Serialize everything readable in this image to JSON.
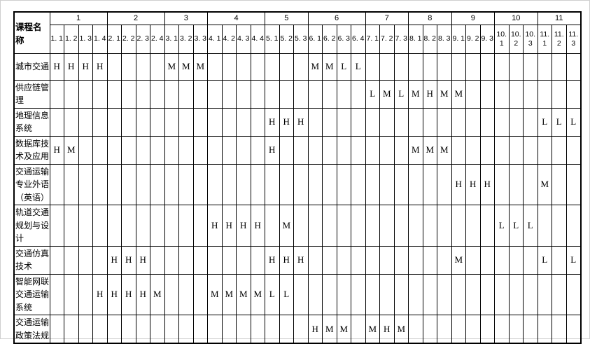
{
  "page": {
    "background": "#ffffff",
    "text_color": "#000000",
    "border_color": "#000000"
  },
  "table": {
    "corner_label": "课程名称",
    "value_scale": [
      "H",
      "M",
      "L"
    ],
    "groups": [
      {
        "label": "1",
        "subcols": [
          "1. 1",
          "1. 2",
          "1. 3",
          "1. 4"
        ]
      },
      {
        "label": "2",
        "subcols": [
          "2. 1",
          "2. 2",
          "2. 3",
          "2. 4"
        ]
      },
      {
        "label": "3",
        "subcols": [
          "3. 1",
          "3. 2",
          "3. 3"
        ]
      },
      {
        "label": "4",
        "subcols": [
          "4. 1",
          "4. 2",
          "4. 3",
          "4. 4"
        ]
      },
      {
        "label": "5",
        "subcols": [
          "5. 1",
          "5. 2",
          "5. 3"
        ]
      },
      {
        "label": "6",
        "subcols": [
          "6. 1",
          "6. 2",
          "6. 3",
          "6. 4"
        ]
      },
      {
        "label": "7",
        "subcols": [
          "7. 1",
          "7. 2",
          "7. 3"
        ]
      },
      {
        "label": "8",
        "subcols": [
          "8. 1",
          "8. 2",
          "8. 3"
        ]
      },
      {
        "label": "9",
        "subcols": [
          "9. 1",
          "9. 2",
          "9. 3"
        ]
      },
      {
        "label": "10",
        "subcols": [
          "10. 1",
          "10. 2",
          "10. 3"
        ]
      },
      {
        "label": "11",
        "subcols": [
          "11. 1",
          "11. 2",
          "11. 3"
        ]
      }
    ],
    "rows": [
      {
        "course": "城市交通",
        "cells": [
          "H",
          "H",
          "H",
          "H",
          "",
          "",
          "",
          "",
          "M",
          "M",
          "M",
          "",
          "",
          "",
          "",
          "",
          "",
          "",
          "M",
          "M",
          "L",
          "L",
          "",
          "",
          "",
          "",
          "",
          "",
          "",
          "",
          "",
          "",
          "",
          "",
          "",
          "",
          ""
        ]
      },
      {
        "course": "供应链管理",
        "cells": [
          "",
          "",
          "",
          "",
          "",
          "",
          "",
          "",
          "",
          "",
          "",
          "",
          "",
          "",
          "",
          "",
          "",
          "",
          "",
          "",
          "",
          "",
          "L",
          "M",
          "L",
          "M",
          "H",
          "M",
          "M",
          "",
          "",
          "",
          "",
          "",
          "",
          "",
          ""
        ]
      },
      {
        "course": "地理信息系统",
        "cells": [
          "",
          "",
          "",
          "",
          "",
          "",
          "",
          "",
          "",
          "",
          "",
          "",
          "",
          "",
          "",
          "H",
          "H",
          "H",
          "",
          "",
          "",
          "",
          "",
          "",
          "",
          "",
          "",
          "",
          "",
          "",
          "",
          "",
          "",
          "",
          "L",
          "L",
          "L"
        ]
      },
      {
        "course": "数据库技术及应用",
        "cells": [
          "H",
          "M",
          "",
          "",
          "",
          "",
          "",
          "",
          "",
          "",
          "",
          "",
          "",
          "",
          "",
          "H",
          "",
          "",
          "",
          "",
          "",
          "",
          "",
          "",
          "",
          "M",
          "M",
          "M",
          "",
          "",
          "",
          "",
          "",
          "",
          "",
          "",
          ""
        ]
      },
      {
        "course": "交通运输专业外语（英语）",
        "cells": [
          "",
          "",
          "",
          "",
          "",
          "",
          "",
          "",
          "",
          "",
          "",
          "",
          "",
          "",
          "",
          "",
          "",
          "",
          "",
          "",
          "",
          "",
          "",
          "",
          "",
          "",
          "",
          "",
          "H",
          "H",
          "H",
          "",
          "",
          "",
          "M",
          "",
          ""
        ]
      },
      {
        "course": "轨道交通规划与设计",
        "cells": [
          "",
          "",
          "",
          "",
          "",
          "",
          "",
          "",
          "",
          "",
          "",
          "H",
          "H",
          "H",
          "H",
          "",
          "M",
          "",
          "",
          "",
          "",
          "",
          "",
          "",
          "",
          "",
          "",
          "",
          "",
          "",
          "",
          "L",
          "L",
          "L",
          "",
          "",
          ""
        ]
      },
      {
        "course": "交通仿真技术",
        "cells": [
          "",
          "",
          "",
          "",
          "H",
          "H",
          "H",
          "",
          "",
          "",
          "",
          "",
          "",
          "",
          "",
          "H",
          "H",
          "H",
          "",
          "",
          "",
          "",
          "",
          "",
          "",
          "",
          "",
          "",
          "M",
          "",
          "",
          "",
          "",
          "",
          "L",
          "",
          "L"
        ]
      },
      {
        "course": "智能网联交通运输系统",
        "cells": [
          "",
          "",
          "",
          "H",
          "H",
          "H",
          "H",
          "M",
          "",
          "",
          "",
          "M",
          "M",
          "M",
          "M",
          "L",
          "L",
          "",
          "",
          "",
          "",
          "",
          "",
          "",
          "",
          "",
          "",
          "",
          "",
          "",
          "",
          "",
          "",
          "",
          "",
          "",
          ""
        ]
      },
      {
        "course": "交通运输政策法规",
        "cells": [
          "",
          "",
          "",
          "",
          "",
          "",
          "",
          "",
          "",
          "",
          "",
          "",
          "",
          "",
          "",
          "",
          "",
          "",
          "H",
          "M",
          "M",
          "",
          "M",
          "H",
          "M",
          "",
          "",
          "",
          "",
          "",
          "",
          "",
          "",
          "",
          "",
          "",
          ""
        ]
      }
    ]
  }
}
